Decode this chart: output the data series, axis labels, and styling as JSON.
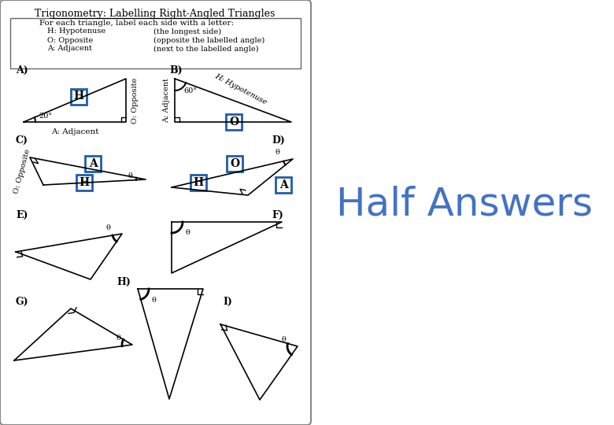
{
  "title": "Trigonometry: Labelling Right-Angled Triangles",
  "half_answers_text": "Half Answers",
  "half_answers_color": "#4472C4",
  "instruction_text": "For each triangle, label each side with a letter:",
  "instruction_lines": [
    [
      "H: Hypotenuse",
      "(the longest side)"
    ],
    [
      "O: Opposite",
      "(opposite the labelled angle)"
    ],
    [
      "A: Adjacent",
      "(next to the labelled angle)"
    ]
  ],
  "label_color": "#1F5EA8",
  "box_color": "#1F5EA8",
  "background_color": "#ffffff",
  "border_color": "#888888"
}
